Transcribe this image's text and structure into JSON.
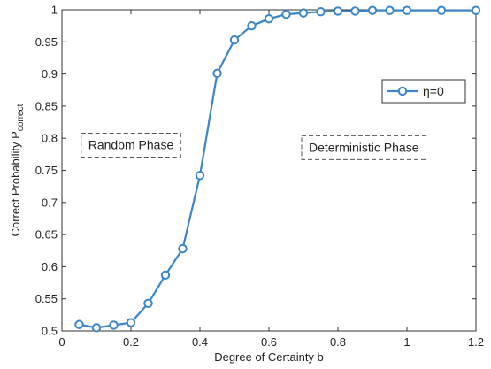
{
  "chart_data": {
    "type": "line",
    "title": "",
    "xlabel": "Degree of Certainty b",
    "ylabel": "Correct Probability P",
    "ylabel_subscript": "correct",
    "xlim": [
      0,
      1.2
    ],
    "ylim": [
      0.5,
      1.0
    ],
    "xticks": [
      0,
      0.2,
      0.4,
      0.6,
      0.8,
      1,
      1.2
    ],
    "xtick_labels": [
      "0",
      "0.2",
      "0.4",
      "0.6",
      "0.8",
      "1",
      "1.2"
    ],
    "yticks": [
      0.5,
      0.55,
      0.6,
      0.65,
      0.7,
      0.75,
      0.8,
      0.85,
      0.9,
      0.95,
      1.0
    ],
    "ytick_labels": [
      "0.5",
      "0.55",
      "0.6",
      "0.65",
      "0.7",
      "0.75",
      "0.8",
      "0.85",
      "0.9",
      "0.95",
      "1"
    ],
    "grid": false,
    "legend_position": "upper-right",
    "series": [
      {
        "name": "η=0",
        "color": "#3a86c8",
        "marker": "circle",
        "points": [
          {
            "x": 0.05,
            "y": 0.51
          },
          {
            "x": 0.1,
            "y": 0.505
          },
          {
            "x": 0.15,
            "y": 0.509
          },
          {
            "x": 0.2,
            "y": 0.513
          },
          {
            "x": 0.25,
            "y": 0.543
          },
          {
            "x": 0.3,
            "y": 0.587
          },
          {
            "x": 0.35,
            "y": 0.628
          },
          {
            "x": 0.4,
            "y": 0.742
          },
          {
            "x": 0.45,
            "y": 0.901
          },
          {
            "x": 0.5,
            "y": 0.953
          },
          {
            "x": 0.55,
            "y": 0.975
          },
          {
            "x": 0.6,
            "y": 0.986
          },
          {
            "x": 0.65,
            "y": 0.993
          },
          {
            "x": 0.7,
            "y": 0.995
          },
          {
            "x": 0.75,
            "y": 0.997
          },
          {
            "x": 0.8,
            "y": 0.998
          },
          {
            "x": 0.85,
            "y": 0.998
          },
          {
            "x": 0.9,
            "y": 0.999
          },
          {
            "x": 0.95,
            "y": 0.999
          },
          {
            "x": 1.0,
            "y": 0.999
          },
          {
            "x": 1.1,
            "y": 0.999
          },
          {
            "x": 1.2,
            "y": 0.999
          }
        ]
      }
    ],
    "annotations": [
      {
        "id": "random-phase",
        "text": "Random Phase",
        "x": 0.2,
        "y": 0.79
      },
      {
        "id": "deterministic-phase",
        "text": "Deterministic Phase",
        "x": 0.875,
        "y": 0.786
      }
    ]
  }
}
